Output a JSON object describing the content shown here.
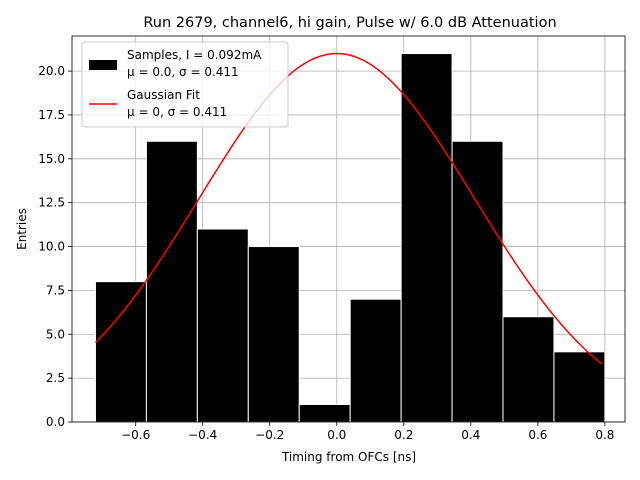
{
  "chart_data": {
    "type": "bar",
    "title": "Run 2679, channel6, hi gain, Pulse w/ 6.0 dB Attenuation",
    "xlabel": "Timing from OFCs [ns]",
    "ylabel": "Entries",
    "xlim": [
      -0.79,
      0.86
    ],
    "ylim": [
      0,
      22.0
    ],
    "x_ticks": [
      -0.6,
      -0.4,
      -0.2,
      0.0,
      0.2,
      0.4,
      0.6,
      0.8
    ],
    "x_tick_labels": [
      "−0.6",
      "−0.4",
      "−0.2",
      "0.0",
      "0.2",
      "0.4",
      "0.6",
      "0.8"
    ],
    "y_ticks": [
      0,
      2.5,
      5,
      7.5,
      10,
      12.5,
      15,
      17.5,
      20
    ],
    "y_tick_labels": [
      "0.0",
      "2.5",
      "5.0",
      "7.5",
      "10.0",
      "12.5",
      "15.0",
      "17.5",
      "20.0"
    ],
    "grid": true,
    "legend_position": "top-left",
    "histogram": {
      "name": "Samples, I = 0.092mA",
      "bin_edges": [
        -0.72,
        -0.568,
        -0.416,
        -0.264,
        -0.112,
        0.04,
        0.192,
        0.344,
        0.496,
        0.648,
        0.8
      ],
      "values": [
        8,
        16,
        11,
        10,
        1,
        7,
        21,
        16,
        6,
        4
      ]
    },
    "fit": {
      "name": "Gaussian Fit",
      "mu": 0,
      "sigma": 0.411,
      "amplitude": 21.0,
      "x_range": [
        -0.72,
        0.79
      ]
    },
    "legend": [
      {
        "kind": "bar",
        "line1": "Samples, I = 0.092mA",
        "line2": "μ = 0.0, σ = 0.411"
      },
      {
        "kind": "line",
        "line1": "Gaussian Fit",
        "line2": "μ = 0, σ = 0.411"
      }
    ]
  }
}
